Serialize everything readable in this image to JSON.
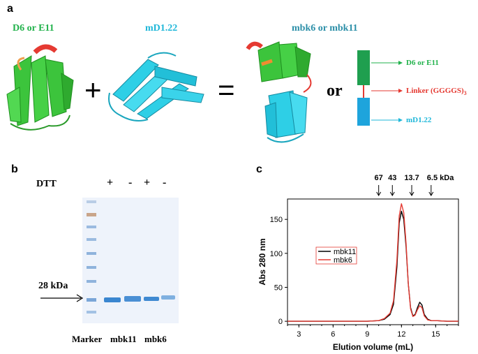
{
  "panel_a": {
    "letter": "a",
    "protein1": "D6 or E11",
    "protein2": "mD1.22",
    "fusion": "mbk6 or mbk11",
    "plus": "+",
    "equals": "=",
    "or": "or",
    "schematic_labels": {
      "top": "D6 or E11",
      "linker": "Linker (GGGGS)",
      "linker_sub": "3",
      "bottom": "mD1.22"
    },
    "colors": {
      "green": "#22b24c",
      "cyan": "#1fb7d9",
      "red": "#e53a32",
      "schematic_blue": "#1ea4dc"
    }
  },
  "panel_b": {
    "letter": "b",
    "dtt_label": "DTT",
    "dtt_signs": [
      "+",
      "-",
      "+",
      "-"
    ],
    "marker_kda": "28 kDa",
    "lane_labels": [
      "Marker",
      "mbk11",
      "mbk6"
    ]
  },
  "panel_c": {
    "letter": "c",
    "chart_data": {
      "type": "line",
      "xlabel": "Elution volume (mL)",
      "ylabel": "Abs 280 nm",
      "xlim": [
        2,
        17
      ],
      "ylim": [
        -5,
        180
      ],
      "xticks": [
        3,
        6,
        9,
        12,
        15
      ],
      "yticks": [
        0,
        50,
        100,
        150
      ],
      "standards": [
        {
          "label": "67",
          "x": 10.0
        },
        {
          "label": "43",
          "x": 11.2
        },
        {
          "label": "13.7",
          "x": 12.9
        },
        {
          "label": "6.5 kDa",
          "x": 14.6
        }
      ],
      "legend_position": "center-left",
      "series": [
        {
          "name": "mbk11",
          "color": "#000000",
          "x": [
            2,
            3,
            4,
            5,
            6,
            7,
            8,
            9,
            10,
            10.5,
            11,
            11.3,
            11.6,
            11.8,
            12.0,
            12.2,
            12.4,
            12.6,
            12.8,
            13.0,
            13.2,
            13.4,
            13.6,
            13.8,
            14.0,
            14.3,
            14.6,
            15,
            16,
            17
          ],
          "y": [
            0,
            0,
            0,
            0,
            0,
            0,
            0,
            0,
            1,
            3,
            10,
            25,
            80,
            145,
            162,
            150,
            110,
            55,
            20,
            8,
            10,
            20,
            28,
            24,
            10,
            3,
            1,
            1,
            0,
            0
          ]
        },
        {
          "name": "mbk6",
          "color": "#e53a32",
          "x": [
            2,
            3,
            4,
            5,
            6,
            7,
            8,
            9,
            10,
            10.5,
            11,
            11.3,
            11.6,
            11.8,
            12.0,
            12.2,
            12.4,
            12.6,
            12.8,
            13.0,
            13.2,
            13.4,
            13.6,
            13.8,
            14.0,
            14.3,
            14.6,
            15,
            16,
            17
          ],
          "y": [
            0,
            0,
            0,
            0,
            0,
            0,
            0,
            0,
            1,
            4,
            12,
            30,
            90,
            155,
            173,
            160,
            115,
            55,
            18,
            7,
            9,
            17,
            23,
            20,
            8,
            2,
            1,
            1,
            0,
            0
          ]
        }
      ]
    }
  }
}
